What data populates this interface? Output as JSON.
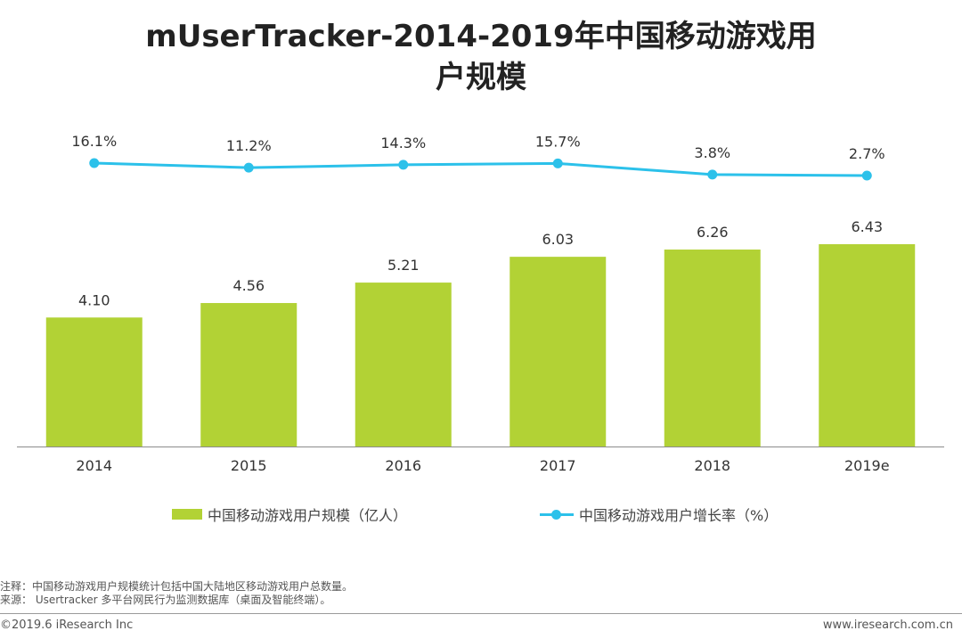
{
  "title_line1": "mUserTracker-2014-2019年中国移动游戏用",
  "title_line2": "户规模",
  "chart_data": {
    "type": "bar+line",
    "categories": [
      "2014",
      "2015",
      "2016",
      "2017",
      "2018",
      "2019e"
    ],
    "series": [
      {
        "name": "中国移动游戏用户规模（亿人）",
        "type": "bar",
        "values": [
          4.1,
          4.56,
          5.21,
          6.03,
          6.26,
          6.43
        ],
        "labels": [
          "4.10",
          "4.56",
          "5.21",
          "6.03",
          "6.26",
          "6.43"
        ],
        "color": "#b2d235"
      },
      {
        "name": "中国移动游戏用户增长率（%）",
        "type": "line",
        "values": [
          16.1,
          11.2,
          14.3,
          15.7,
          3.8,
          2.7
        ],
        "labels": [
          "16.1%",
          "11.2%",
          "14.3%",
          "15.7%",
          "3.8%",
          "2.7%"
        ],
        "color": "#2cc1ea"
      }
    ],
    "bar_ylim": [
      0,
      7
    ],
    "line_ylim": [
      -150,
      50
    ],
    "legend_position": "bottom"
  },
  "notes": {
    "note_line": "注释：中国移动游戏用户规模统计包括中国大陆地区移动游戏用户总数量。",
    "source_line": "来源：  Usertracker 多平台网民行为监测数据库（桌面及智能终端）。"
  },
  "footer": {
    "copyright": "©2019.6 iResearch Inc",
    "website": "www.iresearch.com.cn"
  }
}
